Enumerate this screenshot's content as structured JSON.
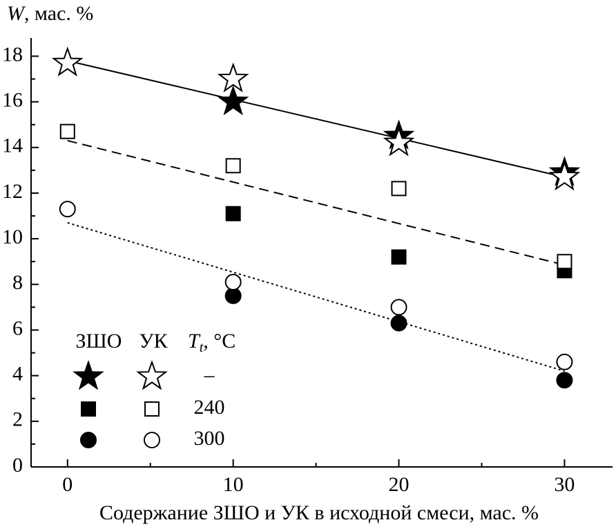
{
  "chart_data": {
    "type": "scatter",
    "ylabel": {
      "symbol": "W",
      "unit": ", мас. %"
    },
    "xlabel": "Содержание ЗШО и УК в исходной смеси, мас. %",
    "x": [
      0,
      10,
      20,
      30
    ],
    "series": [
      {
        "marker": "star",
        "filled": true,
        "color": "#000",
        "values": [
          null,
          16.0,
          14.5,
          12.9
        ]
      },
      {
        "marker": "star",
        "filled": false,
        "color": "#000",
        "values": [
          17.7,
          17.0,
          14.2,
          12.7
        ]
      },
      {
        "marker": "square",
        "filled": true,
        "color": "#000",
        "values": [
          null,
          11.1,
          9.2,
          8.6
        ]
      },
      {
        "marker": "square",
        "filled": false,
        "color": "#000",
        "values": [
          14.7,
          13.2,
          12.2,
          9.0
        ]
      },
      {
        "marker": "circle",
        "filled": true,
        "color": "#000",
        "values": [
          null,
          7.5,
          6.3,
          3.8
        ]
      },
      {
        "marker": "circle",
        "filled": false,
        "color": "#000",
        "values": [
          11.3,
          8.1,
          7.0,
          4.6
        ]
      }
    ],
    "fits": [
      {
        "dash": "solid",
        "x": [
          0,
          30
        ],
        "values": [
          17.8,
          12.7
        ]
      },
      {
        "dash": "dashed",
        "x": [
          0,
          30
        ],
        "values": [
          14.3,
          8.85
        ]
      },
      {
        "dash": "dotted",
        "x": [
          0,
          30
        ],
        "values": [
          10.7,
          4.2
        ]
      }
    ],
    "legend": {
      "columns": [
        "ЗШО",
        "УК"
      ],
      "temp_header": {
        "symbol": "T",
        "subscript": "t",
        "unit": ", °C"
      },
      "rows": [
        {
          "marker": "star",
          "label": "–"
        },
        {
          "marker": "square",
          "label": "240"
        },
        {
          "marker": "circle",
          "label": "300"
        }
      ]
    },
    "xlim": [
      -2.2,
      32.9
    ],
    "xticks": [
      0,
      10,
      20,
      30
    ],
    "xticks_minor": [
      5,
      15,
      25
    ],
    "ylim": [
      0,
      18.8
    ],
    "yticks": [
      0,
      2,
      4,
      6,
      8,
      10,
      12,
      14,
      16,
      18
    ],
    "yticks_minor": [
      1,
      3,
      5,
      7,
      9,
      11,
      13,
      15,
      17
    ]
  }
}
